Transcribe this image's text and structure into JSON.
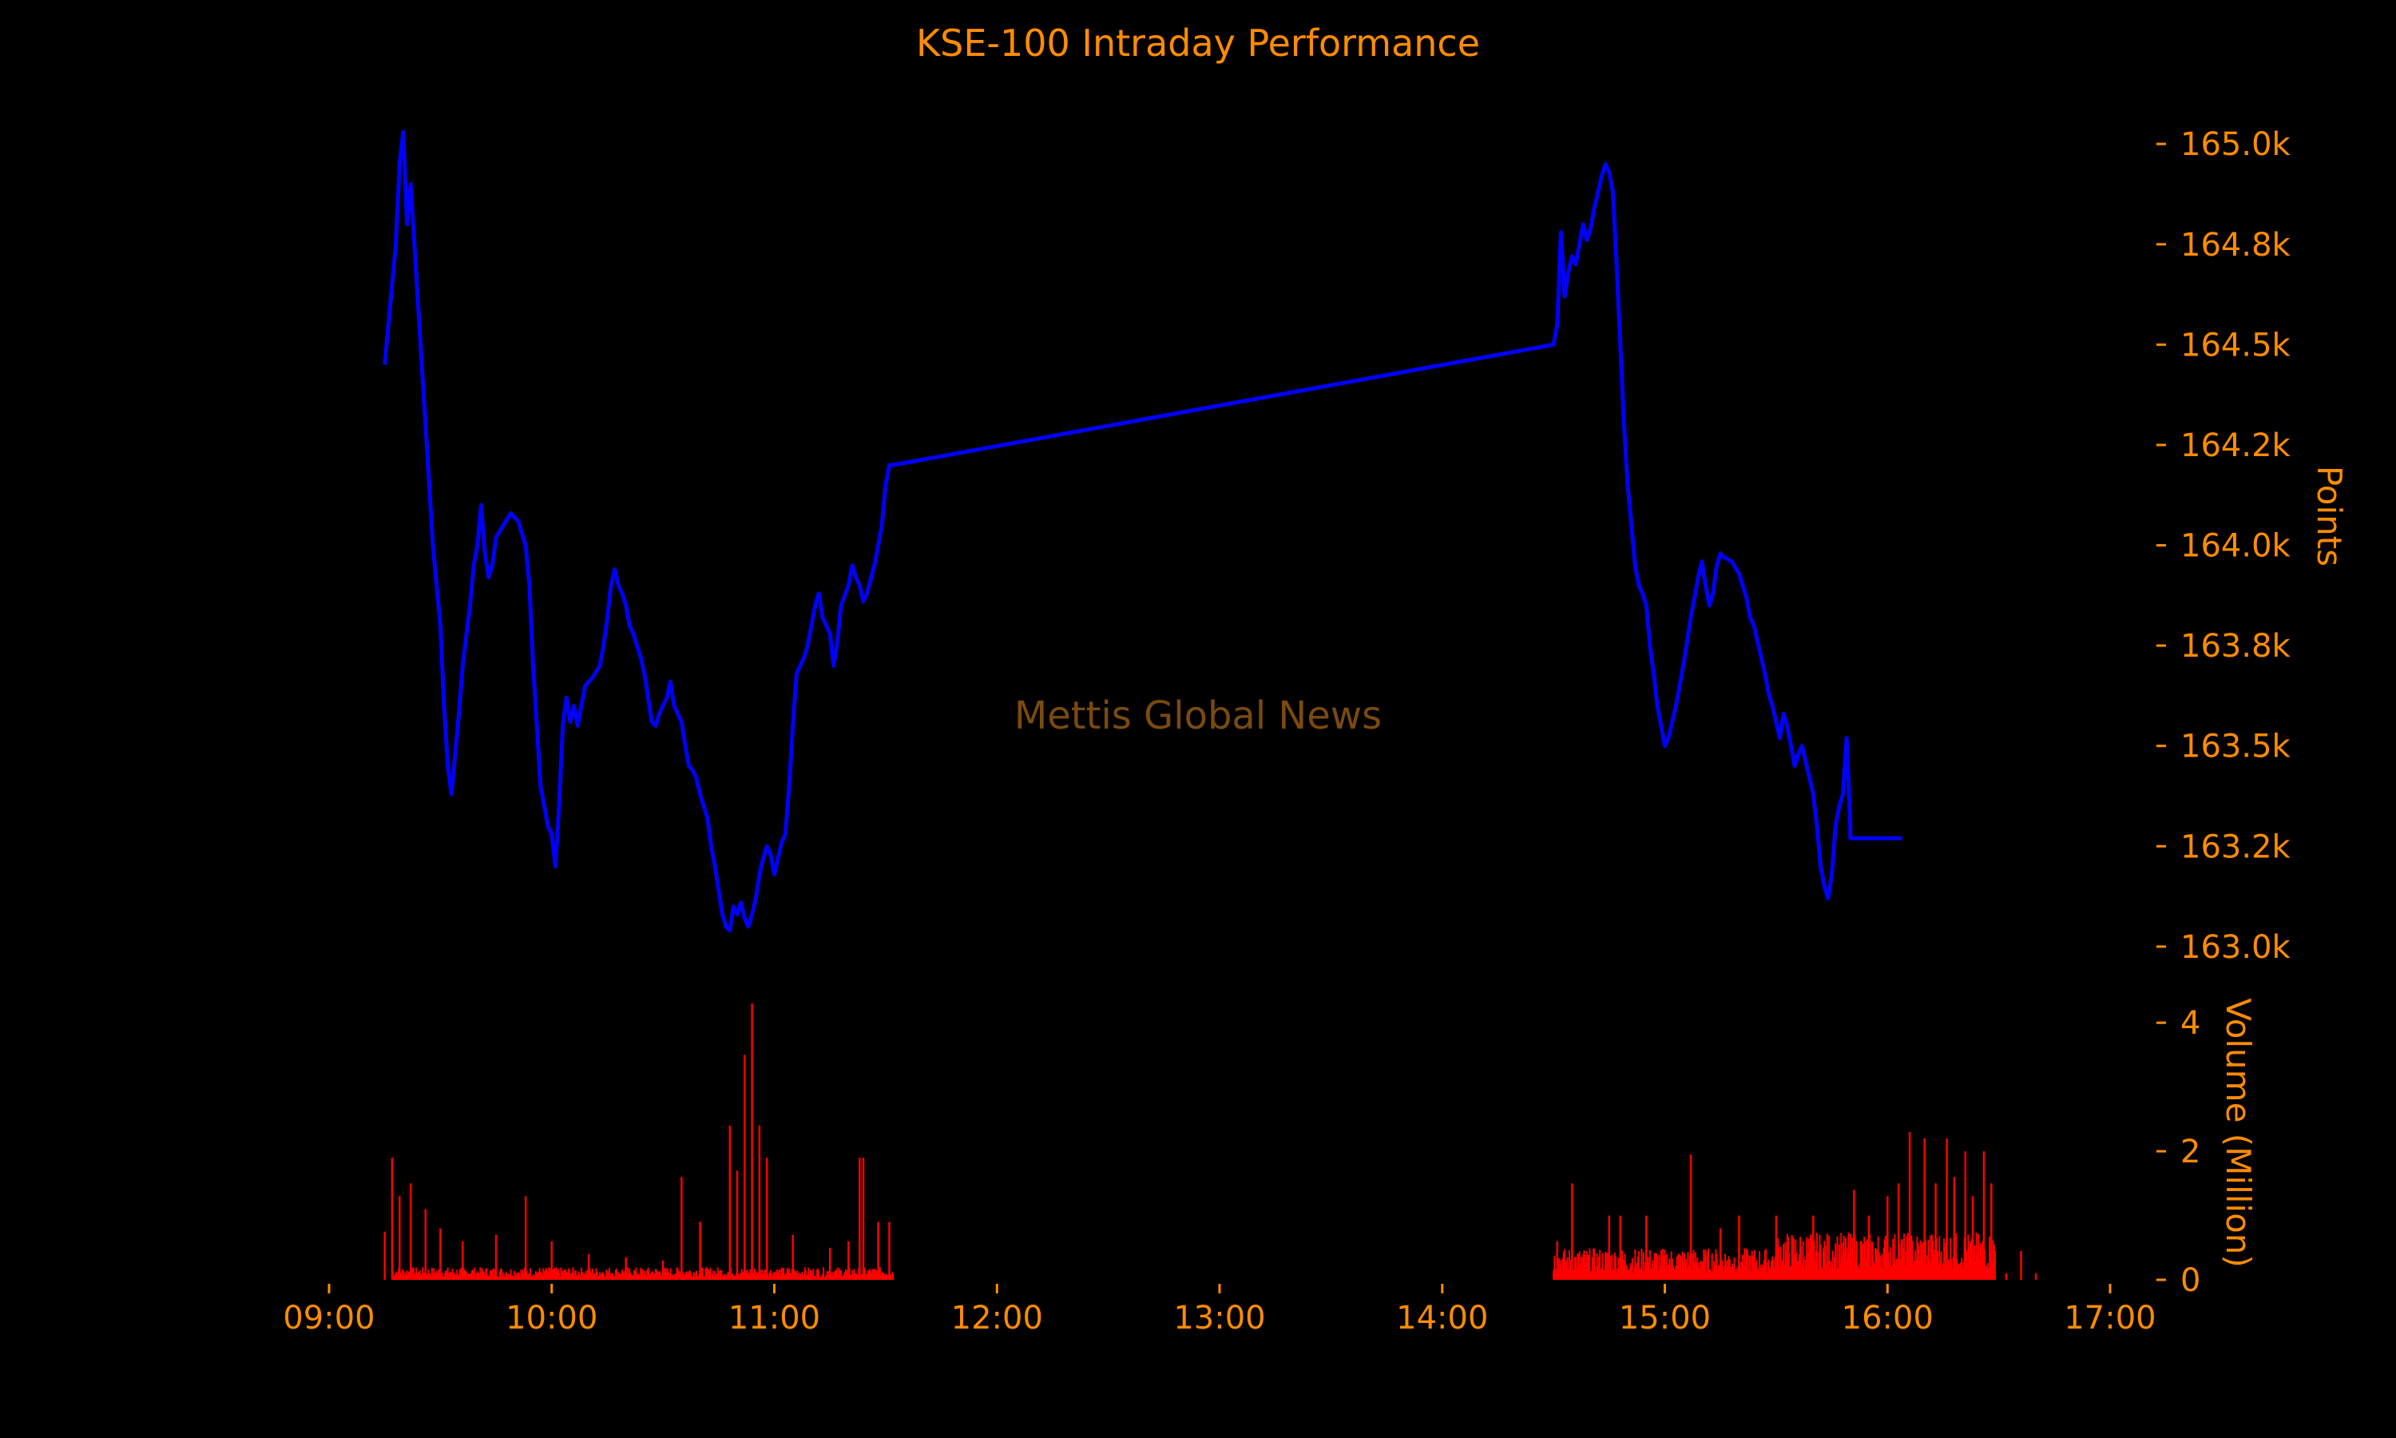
{
  "colors": {
    "background": "#000000",
    "text": "#FF8C00",
    "price_line": "#0000FF",
    "volume_bars": "#FF0000",
    "watermark": "#7A4A10"
  },
  "watermark": "Mettis Global News",
  "chart_data": [
    {
      "type": "line",
      "title": "KSE-100 Intraday Performance",
      "ylabel": "Points",
      "y_axis_side": "right",
      "grid": false,
      "xlim": [
        "09:00",
        "17:00"
      ],
      "ylim": [
        162950,
        165100
      ],
      "yticks": [
        163000,
        163250,
        163500,
        163750,
        164000,
        164250,
        164500,
        164750,
        165000
      ],
      "ytick_labels": [
        "163.0k",
        "163.2k",
        "163.5k",
        "163.8k",
        "164.0k",
        "164.2k",
        "164.5k",
        "164.8k",
        "165.0k"
      ],
      "series": [
        {
          "points": [
            [
              "09:15",
              164450
            ],
            [
              "09:18",
              164750
            ],
            [
              "09:19",
              164950
            ],
            [
              "09:20",
              165030
            ],
            [
              "09:21",
              164800
            ],
            [
              "09:22",
              164900
            ],
            [
              "09:24",
              164600
            ],
            [
              "09:26",
              164300
            ],
            [
              "09:28",
              164000
            ],
            [
              "09:30",
              163800
            ],
            [
              "09:31",
              163600
            ],
            [
              "09:32",
              163450
            ],
            [
              "09:33",
              163380
            ],
            [
              "09:35",
              163580
            ],
            [
              "09:36",
              163700
            ],
            [
              "09:38",
              163850
            ],
            [
              "09:39",
              163950
            ],
            [
              "09:40",
              164000
            ],
            [
              "09:41",
              164100
            ],
            [
              "09:42",
              163980
            ],
            [
              "09:43",
              163920
            ],
            [
              "09:44",
              163950
            ],
            [
              "09:45",
              164020
            ],
            [
              "09:47",
              164050
            ],
            [
              "09:49",
              164080
            ],
            [
              "09:51",
              164060
            ],
            [
              "09:53",
              164000
            ],
            [
              "09:54",
              163900
            ],
            [
              "09:55",
              163700
            ],
            [
              "09:56",
              163550
            ],
            [
              "09:57",
              163400
            ],
            [
              "09:58",
              163350
            ],
            [
              "09:59",
              163300
            ],
            [
              "10:00",
              163280
            ],
            [
              "10:01",
              163200
            ],
            [
              "10:02",
              163350
            ],
            [
              "10:03",
              163550
            ],
            [
              "10:04",
              163620
            ],
            [
              "10:05",
              163560
            ],
            [
              "10:06",
              163600
            ],
            [
              "10:07",
              163550
            ],
            [
              "10:09",
              163650
            ],
            [
              "10:11",
              163670
            ],
            [
              "10:13",
              163700
            ],
            [
              "10:14",
              163750
            ],
            [
              "10:15",
              163820
            ],
            [
              "10:16",
              163900
            ],
            [
              "10:17",
              163940
            ],
            [
              "10:18",
              163900
            ],
            [
              "10:19",
              163880
            ],
            [
              "10:20",
              163850
            ],
            [
              "10:21",
              163800
            ],
            [
              "10:22",
              163780
            ],
            [
              "10:23",
              163750
            ],
            [
              "10:24",
              163720
            ],
            [
              "10:25",
              163680
            ],
            [
              "10:26",
              163620
            ],
            [
              "10:27",
              163560
            ],
            [
              "10:28",
              163550
            ],
            [
              "10:29",
              163580
            ],
            [
              "10:31",
              163620
            ],
            [
              "10:32",
              163660
            ],
            [
              "10:33",
              163600
            ],
            [
              "10:35",
              163560
            ],
            [
              "10:36",
              163500
            ],
            [
              "10:37",
              163450
            ],
            [
              "10:38",
              163440
            ],
            [
              "10:39",
              163420
            ],
            [
              "10:40",
              163380
            ],
            [
              "10:41",
              163350
            ],
            [
              "10:42",
              163320
            ],
            [
              "10:43",
              163250
            ],
            [
              "10:44",
              163200
            ],
            [
              "10:45",
              163140
            ],
            [
              "10:46",
              163080
            ],
            [
              "10:47",
              163050
            ],
            [
              "10:48",
              163040
            ],
            [
              "10:49",
              163100
            ],
            [
              "10:50",
              163080
            ],
            [
              "10:51",
              163110
            ],
            [
              "10:52",
              163070
            ],
            [
              "10:53",
              163050
            ],
            [
              "10:54",
              163080
            ],
            [
              "10:55",
              163120
            ],
            [
              "10:56",
              163180
            ],
            [
              "10:57",
              163220
            ],
            [
              "10:58",
              163250
            ],
            [
              "10:59",
              163230
            ],
            [
              "11:00",
              163180
            ],
            [
              "11:01",
              163220
            ],
            [
              "11:02",
              163260
            ],
            [
              "11:03",
              163280
            ],
            [
              "11:04",
              163400
            ],
            [
              "11:05",
              163550
            ],
            [
              "11:06",
              163680
            ],
            [
              "11:07",
              163700
            ],
            [
              "11:08",
              163720
            ],
            [
              "11:09",
              163750
            ],
            [
              "11:10",
              163800
            ],
            [
              "11:11",
              163850
            ],
            [
              "11:12",
              163880
            ],
            [
              "11:13",
              163820
            ],
            [
              "11:14",
              163800
            ],
            [
              "11:15",
              163780
            ],
            [
              "11:16",
              163700
            ],
            [
              "11:17",
              163760
            ],
            [
              "11:18",
              163850
            ],
            [
              "11:20",
              163900
            ],
            [
              "11:21",
              163950
            ],
            [
              "11:22",
              163920
            ],
            [
              "11:23",
              163900
            ],
            [
              "11:24",
              163860
            ],
            [
              "11:25",
              163880
            ],
            [
              "11:27",
              163950
            ],
            [
              "11:28",
              164000
            ],
            [
              "11:29",
              164050
            ],
            [
              "11:30",
              164150
            ],
            [
              "11:31",
              164200
            ],
            [
              "11:32",
              164200
            ],
            [
              "14:30",
              164500
            ],
            [
              "14:31",
              164550
            ],
            [
              "14:32",
              164780
            ],
            [
              "14:33",
              164620
            ],
            [
              "14:34",
              164680
            ],
            [
              "14:35",
              164720
            ],
            [
              "14:36",
              164700
            ],
            [
              "14:37",
              164750
            ],
            [
              "14:38",
              164800
            ],
            [
              "14:39",
              164760
            ],
            [
              "14:40",
              164790
            ],
            [
              "14:41",
              164840
            ],
            [
              "14:42",
              164880
            ],
            [
              "14:43",
              164920
            ],
            [
              "14:44",
              164950
            ],
            [
              "14:45",
              164930
            ],
            [
              "14:46",
              164880
            ],
            [
              "14:47",
              164700
            ],
            [
              "14:48",
              164500
            ],
            [
              "14:49",
              164300
            ],
            [
              "14:50",
              164150
            ],
            [
              "14:51",
              164050
            ],
            [
              "14:52",
              163950
            ],
            [
              "14:53",
              163900
            ],
            [
              "14:54",
              163880
            ],
            [
              "14:55",
              163850
            ],
            [
              "14:56",
              163750
            ],
            [
              "14:57",
              163680
            ],
            [
              "14:58",
              163600
            ],
            [
              "14:59",
              163550
            ],
            [
              "15:00",
              163500
            ],
            [
              "15:01",
              163520
            ],
            [
              "15:02",
              163560
            ],
            [
              "15:03",
              163600
            ],
            [
              "15:04",
              163650
            ],
            [
              "15:05",
              163700
            ],
            [
              "15:06",
              163760
            ],
            [
              "15:07",
              163820
            ],
            [
              "15:08",
              163870
            ],
            [
              "15:09",
              163920
            ],
            [
              "15:10",
              163960
            ],
            [
              "15:11",
              163900
            ],
            [
              "15:12",
              163850
            ],
            [
              "15:13",
              163880
            ],
            [
              "15:14",
              163950
            ],
            [
              "15:15",
              163980
            ],
            [
              "15:16",
              163970
            ],
            [
              "15:18",
              163960
            ],
            [
              "15:20",
              163930
            ],
            [
              "15:21",
              163900
            ],
            [
              "15:22",
              163870
            ],
            [
              "15:23",
              163820
            ],
            [
              "15:24",
              163800
            ],
            [
              "15:25",
              163760
            ],
            [
              "15:26",
              163720
            ],
            [
              "15:27",
              163680
            ],
            [
              "15:28",
              163630
            ],
            [
              "15:29",
              163600
            ],
            [
              "15:30",
              163560
            ],
            [
              "15:31",
              163520
            ],
            [
              "15:32",
              163580
            ],
            [
              "15:33",
              163550
            ],
            [
              "15:34",
              163500
            ],
            [
              "15:35",
              163450
            ],
            [
              "15:36",
              163480
            ],
            [
              "15:37",
              163500
            ],
            [
              "15:38",
              163460
            ],
            [
              "15:39",
              163420
            ],
            [
              "15:40",
              163380
            ],
            [
              "15:41",
              163300
            ],
            [
              "15:42",
              163200
            ],
            [
              "15:43",
              163150
            ],
            [
              "15:44",
              163120
            ],
            [
              "15:45",
              163180
            ],
            [
              "15:46",
              163300
            ],
            [
              "15:47",
              163350
            ],
            [
              "15:48",
              163380
            ],
            [
              "15:49",
              163520
            ],
            [
              "15:50",
              163300
            ],
            [
              "15:50",
              163270
            ],
            [
              "16:04",
              163270
            ]
          ]
        }
      ]
    },
    {
      "type": "bar",
      "ylabel": "Volume (Million)",
      "y_axis_side": "right",
      "grid": false,
      "xlim": [
        "09:00",
        "17:00"
      ],
      "ylim": [
        0,
        4.5
      ],
      "yticks": [
        0,
        2,
        4
      ],
      "ytick_labels": [
        "0",
        "2",
        "4"
      ],
      "xticks": [
        "09:00",
        "10:00",
        "11:00",
        "12:00",
        "13:00",
        "14:00",
        "15:00",
        "16:00",
        "17:00"
      ],
      "spikes": [
        [
          "09:15",
          0.75
        ],
        [
          "09:17",
          1.9
        ],
        [
          "09:19",
          1.3
        ],
        [
          "09:22",
          1.5
        ],
        [
          "09:26",
          1.1
        ],
        [
          "09:30",
          0.8
        ],
        [
          "09:36",
          0.6
        ],
        [
          "09:45",
          0.7
        ],
        [
          "09:53",
          1.3
        ],
        [
          "10:00",
          0.6
        ],
        [
          "10:10",
          0.4
        ],
        [
          "10:20",
          0.35
        ],
        [
          "10:30",
          0.3
        ],
        [
          "10:35",
          1.6
        ],
        [
          "10:40",
          0.9
        ],
        [
          "10:48",
          2.4
        ],
        [
          "10:50",
          1.7
        ],
        [
          "10:52",
          3.5
        ],
        [
          "10:54",
          4.3
        ],
        [
          "10:56",
          2.4
        ],
        [
          "10:58",
          1.9
        ],
        [
          "11:05",
          0.7
        ],
        [
          "11:15",
          0.5
        ],
        [
          "11:20",
          0.6
        ],
        [
          "11:23",
          1.9
        ],
        [
          "11:24",
          1.9
        ],
        [
          "11:28",
          0.9
        ],
        [
          "11:31",
          0.9
        ],
        [
          "14:31",
          0.6
        ],
        [
          "14:35",
          1.5
        ],
        [
          "14:45",
          1.0
        ],
        [
          "14:48",
          1.0
        ],
        [
          "14:55",
          1.0
        ],
        [
          "15:07",
          1.95
        ],
        [
          "15:15",
          0.8
        ],
        [
          "15:20",
          1.0
        ],
        [
          "15:30",
          1.0
        ],
        [
          "15:40",
          1.0
        ],
        [
          "15:51",
          1.4
        ],
        [
          "15:55",
          1.0
        ],
        [
          "16:00",
          1.3
        ],
        [
          "16:03",
          1.5
        ],
        [
          "16:06",
          2.3
        ],
        [
          "16:10",
          2.2
        ],
        [
          "16:13",
          1.5
        ],
        [
          "16:16",
          2.2
        ],
        [
          "16:18",
          1.6
        ],
        [
          "16:21",
          2.0
        ],
        [
          "16:23",
          1.3
        ],
        [
          "16:26",
          2.0
        ],
        [
          "16:28",
          1.5
        ],
        [
          "16:32",
          0.1
        ],
        [
          "16:36",
          0.45
        ],
        [
          "16:40",
          0.1
        ]
      ],
      "base_segments": [
        {
          "start": "09:17",
          "end": "11:32",
          "level": 0.12
        },
        {
          "start": "14:30",
          "end": "15:30",
          "level": 0.3
        },
        {
          "start": "15:30",
          "end": "16:29",
          "level": 0.45
        }
      ]
    }
  ]
}
